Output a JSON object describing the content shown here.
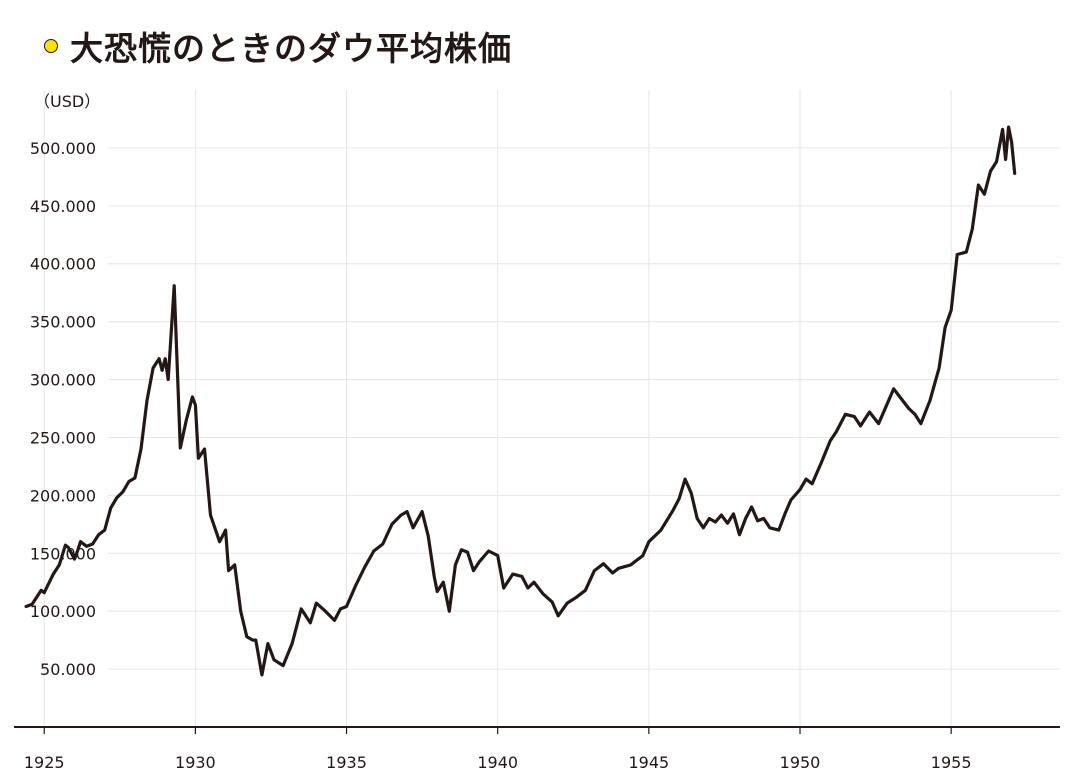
{
  "chart_data": {
    "type": "line",
    "title": "大恐慌のときのダウ平均株価",
    "unit_label": "（USD）",
    "xlim": [
      1924.0,
      1958.6
    ],
    "ylim": [
      0,
      550
    ],
    "x_ticks": [
      1925,
      1930,
      1935,
      1940,
      1945,
      1950,
      1955
    ],
    "x_tick_labels": [
      "1925",
      "1930",
      "1935",
      "1940",
      "1945",
      "1950",
      "1955"
    ],
    "y_ticks": [
      50,
      100,
      150,
      200,
      250,
      300,
      350,
      400,
      450,
      500
    ],
    "y_tick_labels": [
      "50.000",
      "100.000",
      "150.000",
      "200.000",
      "250.000",
      "300.000",
      "350.000",
      "400.000",
      "450.000",
      "500.000"
    ],
    "grid": true,
    "legend": "none",
    "colors": {
      "line": "#231815",
      "grid": "#e6e6e6",
      "axis": "#231815",
      "title_dot": "#ffe100"
    },
    "series": [
      {
        "x": [
          1924.4,
          1924.6,
          1924.9,
          1925.0,
          1925.3,
          1925.5,
          1925.7,
          1925.8,
          1926.0,
          1926.1,
          1926.2,
          1926.4,
          1926.6,
          1926.8,
          1927.0,
          1927.2,
          1927.4,
          1927.6,
          1927.8,
          1928.0,
          1928.2,
          1928.4,
          1928.6,
          1928.8,
          1928.9,
          1929.0,
          1929.1,
          1929.3,
          1929.5,
          1929.7,
          1929.9,
          1930.0,
          1930.1,
          1930.3,
          1930.5,
          1930.8,
          1931.0,
          1931.1,
          1931.3,
          1931.5,
          1931.7,
          1931.9,
          1932.0,
          1932.2,
          1932.4,
          1932.6,
          1932.9,
          1933.2,
          1933.5,
          1933.8,
          1934.0,
          1934.3,
          1934.6,
          1934.8,
          1935.0,
          1935.3,
          1935.6,
          1935.9,
          1936.2,
          1936.5,
          1936.8,
          1937.0,
          1937.2,
          1937.5,
          1937.7,
          1937.9,
          1938.0,
          1938.2,
          1938.4,
          1938.6,
          1938.8,
          1939.0,
          1939.2,
          1939.4,
          1939.7,
          1940.0,
          1940.2,
          1940.5,
          1940.8,
          1941.0,
          1941.2,
          1941.5,
          1941.8,
          1942.0,
          1942.3,
          1942.6,
          1942.9,
          1943.2,
          1943.5,
          1943.8,
          1944.0,
          1944.4,
          1944.8,
          1945.0,
          1945.4,
          1945.8,
          1946.0,
          1946.2,
          1946.4,
          1946.6,
          1946.8,
          1947.0,
          1947.2,
          1947.4,
          1947.6,
          1947.8,
          1948.0,
          1948.2,
          1948.4,
          1948.6,
          1948.8,
          1949.0,
          1949.3,
          1949.5,
          1949.7,
          1950.0,
          1950.2,
          1950.4,
          1950.7,
          1951.0,
          1951.2,
          1951.5,
          1951.8,
          1952.0,
          1952.3,
          1952.6,
          1952.9,
          1953.1,
          1953.3,
          1953.6,
          1953.8,
          1954.0,
          1954.3,
          1954.6,
          1954.8,
          1955.0,
          1955.2,
          1955.5,
          1955.7,
          1955.9,
          1956.1,
          1956.3,
          1956.5,
          1956.7,
          1956.8,
          1956.9,
          1957.0,
          1957.1
        ],
        "y": [
          104,
          106,
          118,
          116,
          132,
          140,
          157,
          155,
          145,
          152,
          160,
          156,
          158,
          166,
          170,
          189,
          198,
          203,
          212,
          215,
          240,
          282,
          310,
          318,
          308,
          318,
          300,
          381,
          241,
          265,
          285,
          278,
          232,
          240,
          183,
          160,
          170,
          135,
          140,
          100,
          78,
          75,
          75,
          45,
          72,
          58,
          53,
          72,
          102,
          90,
          107,
          100,
          92,
          102,
          104,
          122,
          138,
          152,
          158,
          175,
          183,
          186,
          172,
          186,
          165,
          130,
          117,
          125,
          100,
          140,
          153,
          151,
          135,
          143,
          152,
          148,
          120,
          132,
          130,
          120,
          125,
          115,
          108,
          96,
          107,
          112,
          118,
          135,
          141,
          133,
          137,
          140,
          148,
          160,
          170,
          187,
          197,
          214,
          202,
          180,
          172,
          180,
          177,
          183,
          176,
          184,
          166,
          180,
          190,
          178,
          180,
          172,
          170,
          184,
          196,
          205,
          214,
          210,
          228,
          247,
          255,
          270,
          268,
          260,
          272,
          262,
          280,
          292,
          285,
          275,
          270,
          262,
          282,
          310,
          345,
          360,
          408,
          410,
          430,
          468,
          460,
          480,
          488,
          516,
          490,
          518,
          505,
          478
        ]
      }
    ]
  }
}
